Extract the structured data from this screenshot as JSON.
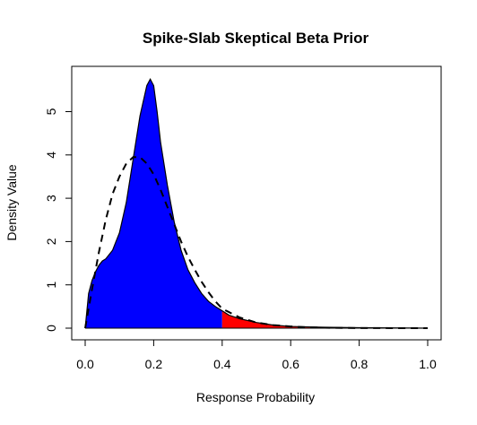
{
  "chart_data": {
    "type": "area",
    "title": "Spike-Slab Skeptical Beta Prior",
    "xlabel": "Response Probability",
    "ylabel": "Density Value",
    "xlim": [
      0,
      1
    ],
    "ylim": [
      0,
      5.8
    ],
    "x_ticks": [
      "0.0",
      "0.2",
      "0.4",
      "0.6",
      "0.8",
      "1.0"
    ],
    "y_ticks": [
      "0",
      "1",
      "2",
      "3",
      "4",
      "5"
    ],
    "grid": false,
    "legend": "none",
    "shade_threshold": 0.4,
    "colors": {
      "below_threshold_fill": "#0000ff",
      "above_threshold_fill": "#ff0000",
      "dashed_line": "#000000"
    },
    "series": [
      {
        "style": "filled solid outline",
        "x": [
          0.0,
          0.01,
          0.02,
          0.03,
          0.04,
          0.05,
          0.06,
          0.08,
          0.1,
          0.12,
          0.14,
          0.16,
          0.18,
          0.19,
          0.2,
          0.21,
          0.22,
          0.24,
          0.26,
          0.28,
          0.3,
          0.32,
          0.34,
          0.36,
          0.38,
          0.4,
          0.42,
          0.45,
          0.5,
          0.55,
          0.6,
          0.65,
          0.7,
          0.8,
          0.9,
          1.0
        ],
        "y": [
          0.0,
          0.8,
          1.1,
          1.3,
          1.45,
          1.55,
          1.6,
          1.8,
          2.2,
          2.9,
          3.9,
          4.9,
          5.6,
          5.75,
          5.6,
          5.0,
          4.3,
          3.3,
          2.45,
          1.8,
          1.35,
          1.05,
          0.8,
          0.62,
          0.5,
          0.4,
          0.3,
          0.22,
          0.13,
          0.07,
          0.04,
          0.03,
          0.02,
          0.01,
          0.005,
          0.0
        ]
      },
      {
        "style": "dashed line",
        "x": [
          0.0,
          0.02,
          0.04,
          0.06,
          0.08,
          0.1,
          0.12,
          0.14,
          0.16,
          0.18,
          0.2,
          0.22,
          0.24,
          0.26,
          0.28,
          0.3,
          0.32,
          0.34,
          0.36,
          0.38,
          0.4,
          0.45,
          0.5,
          0.55,
          0.6,
          0.65,
          0.7,
          0.8,
          0.9,
          1.0
        ],
        "y": [
          0.0,
          0.9,
          1.75,
          2.5,
          3.1,
          3.5,
          3.8,
          3.95,
          3.95,
          3.8,
          3.55,
          3.2,
          2.8,
          2.4,
          2.0,
          1.65,
          1.35,
          1.07,
          0.83,
          0.62,
          0.45,
          0.25,
          0.13,
          0.07,
          0.04,
          0.02,
          0.01,
          0.003,
          0.001,
          0.0
        ]
      }
    ]
  }
}
